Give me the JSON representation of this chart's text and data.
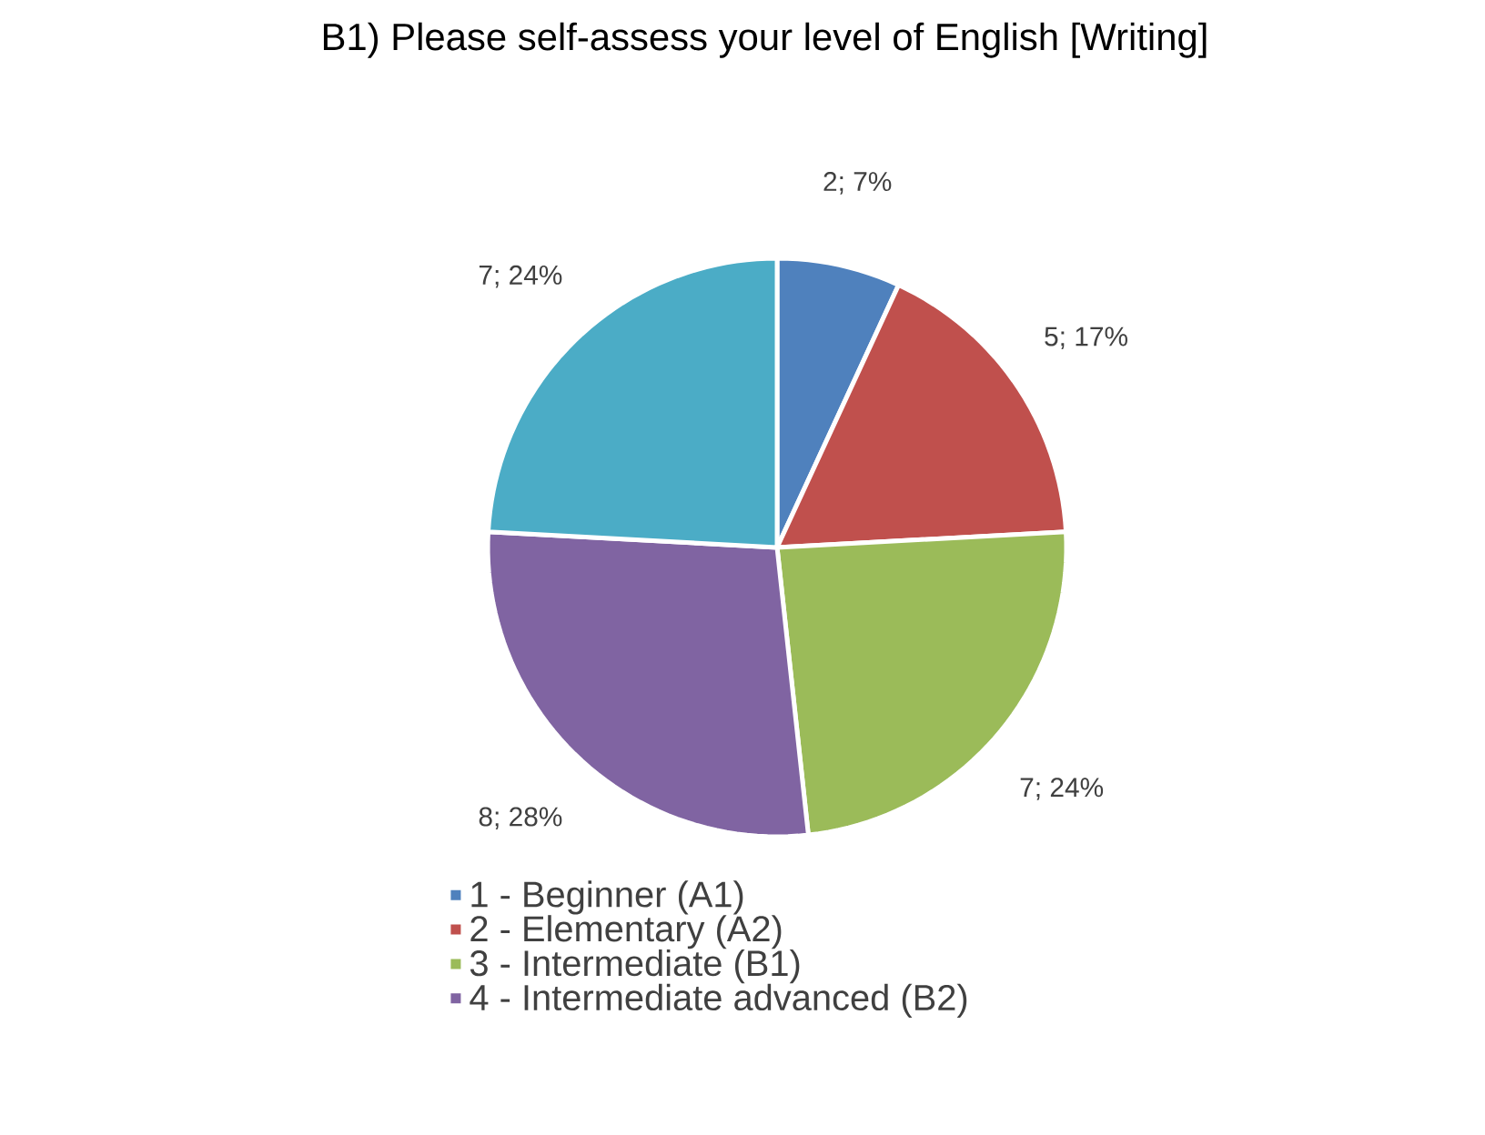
{
  "chart_data": {
    "type": "pie",
    "title": "B1) Please self-assess your level of English [Writing]",
    "categories": [
      "1 - Beginner (A1)",
      "2 - Elementary (A2)",
      "3 - Intermediate (B1)",
      "4 - Intermediate advanced (B2)",
      null
    ],
    "values": [
      2,
      5,
      7,
      8,
      7
    ],
    "colors": [
      "#4f81bd",
      "#c0504d",
      "#9bbb59",
      "#8064a2",
      "#4bacc6"
    ],
    "value_labels": [
      "2; 7%",
      "5; 17%",
      "7; 24%",
      "8; 28%",
      "7; 24%"
    ],
    "legend": "bottom"
  }
}
